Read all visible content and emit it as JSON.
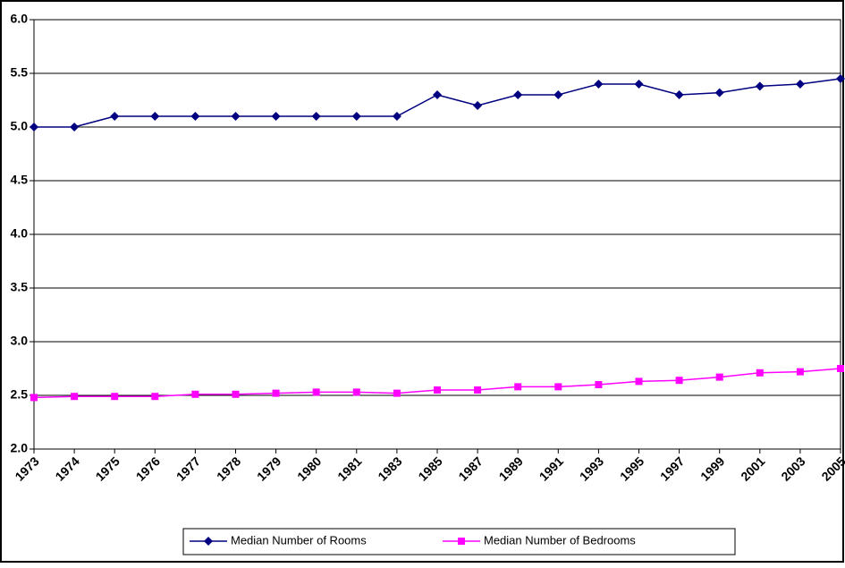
{
  "chart_data": {
    "type": "line",
    "categories": [
      "1973",
      "1974",
      "1975",
      "1976",
      "1977",
      "1978",
      "1979",
      "1980",
      "1981",
      "1983",
      "1985",
      "1987",
      "1989",
      "1991",
      "1993",
      "1995",
      "1997",
      "1999",
      "2001",
      "2003",
      "2005"
    ],
    "series": [
      {
        "name": "Median Number of Rooms",
        "color": "#000080",
        "marker": "diamond",
        "values": [
          5.0,
          5.0,
          5.1,
          5.1,
          5.1,
          5.1,
          5.1,
          5.1,
          5.1,
          5.1,
          5.3,
          5.2,
          5.3,
          5.3,
          5.4,
          5.4,
          5.3,
          5.32,
          5.38,
          5.4,
          5.45
        ]
      },
      {
        "name": "Median Number of Bedrooms",
        "color": "#ff00ff",
        "marker": "square",
        "values": [
          2.48,
          2.49,
          2.49,
          2.49,
          2.51,
          2.51,
          2.52,
          2.53,
          2.53,
          2.52,
          2.55,
          2.55,
          2.58,
          2.58,
          2.6,
          2.63,
          2.64,
          2.67,
          2.71,
          2.72,
          2.75
        ]
      }
    ],
    "ylim": [
      2.0,
      6.0
    ],
    "yticks": [
      {
        "value": 2.0,
        "label": "2.0"
      },
      2.5,
      {
        "value": 3.0,
        "label": "3.0"
      },
      3.5,
      {
        "value": 4.0,
        "label": "4.0"
      },
      4.5,
      {
        "value": 5.0,
        "label": "5.0"
      },
      5.5,
      {
        "value": 6.0,
        "label": "6.0"
      }
    ],
    "grid": true,
    "legend": "bottom"
  }
}
